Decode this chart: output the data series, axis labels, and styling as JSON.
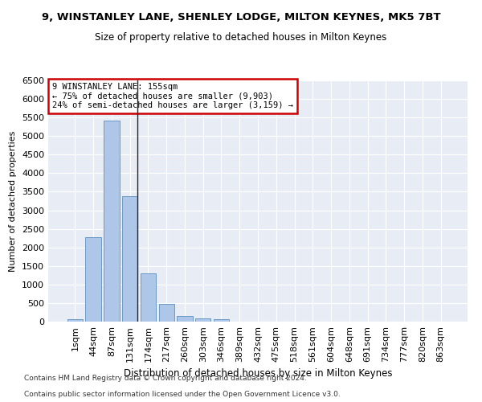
{
  "title1": "9, WINSTANLEY LANE, SHENLEY LODGE, MILTON KEYNES, MK5 7BT",
  "title2": "Size of property relative to detached houses in Milton Keynes",
  "xlabel": "Distribution of detached houses by size in Milton Keynes",
  "ylabel": "Number of detached properties",
  "footnote1": "Contains HM Land Registry data © Crown copyright and database right 2024.",
  "footnote2": "Contains public sector information licensed under the Open Government Licence v3.0.",
  "annotation_line1": "9 WINSTANLEY LANE: 155sqm",
  "annotation_line2": "← 75% of detached houses are smaller (9,903)",
  "annotation_line3": "24% of semi-detached houses are larger (3,159) →",
  "bar_labels": [
    "1sqm",
    "44sqm",
    "87sqm",
    "131sqm",
    "174sqm",
    "217sqm",
    "260sqm",
    "303sqm",
    "346sqm",
    "389sqm",
    "432sqm",
    "475sqm",
    "518sqm",
    "561sqm",
    "604sqm",
    "648sqm",
    "691sqm",
    "734sqm",
    "777sqm",
    "820sqm",
    "863sqm"
  ],
  "bar_values": [
    75,
    2280,
    5420,
    3380,
    1310,
    480,
    160,
    95,
    60,
    0,
    0,
    0,
    0,
    0,
    0,
    0,
    0,
    0,
    0,
    0,
    0
  ],
  "bar_color": "#aec6e8",
  "bar_edge_color": "#5a8fc0",
  "ylim": [
    0,
    6500
  ],
  "bg_color": "#e8edf5",
  "grid_color": "#ffffff",
  "annotation_box_color": "#cc0000",
  "property_line_x": 3,
  "figsize": [
    6.0,
    5.0
  ],
  "dpi": 100
}
